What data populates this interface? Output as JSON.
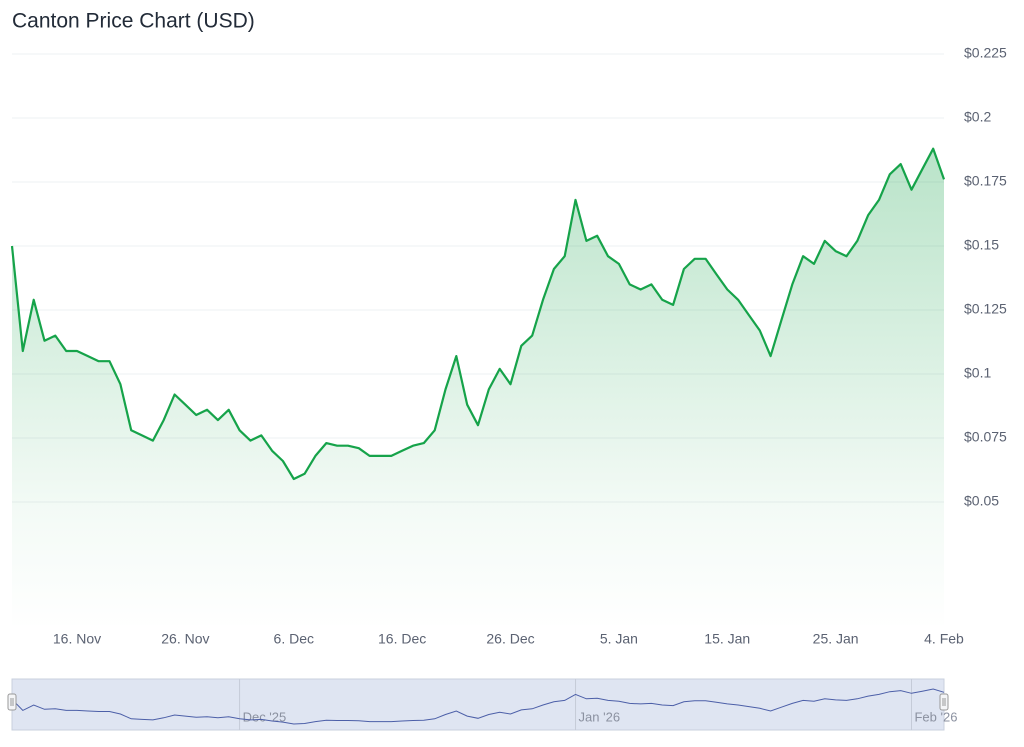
{
  "chart_data": {
    "type": "line",
    "title": "Canton Price Chart (USD)",
    "color": "#16a34a",
    "categories": [
      "10. Nov",
      "11. Nov",
      "12. Nov",
      "13. Nov",
      "14. Nov",
      "15. Nov",
      "16. Nov",
      "17. Nov",
      "18. Nov",
      "19. Nov",
      "20. Nov",
      "21. Nov",
      "22. Nov",
      "23. Nov",
      "24. Nov",
      "25. Nov",
      "26. Nov",
      "27. Nov",
      "28. Nov",
      "29. Nov",
      "30. Nov",
      "1. Dec",
      "2. Dec",
      "3. Dec",
      "4. Dec",
      "5. Dec",
      "6. Dec",
      "7. Dec",
      "8. Dec",
      "9. Dec",
      "10. Dec",
      "11. Dec",
      "12. Dec",
      "13. Dec",
      "14. Dec",
      "15. Dec",
      "16. Dec",
      "17. Dec",
      "18. Dec",
      "19. Dec",
      "20. Dec",
      "21. Dec",
      "22. Dec",
      "23. Dec",
      "24. Dec",
      "25. Dec",
      "26. Dec",
      "27. Dec",
      "28. Dec",
      "29. Dec",
      "30. Dec",
      "31. Dec",
      "1. Jan",
      "2. Jan",
      "3. Jan",
      "4. Jan",
      "5. Jan",
      "6. Jan",
      "7. Jan",
      "8. Jan",
      "9. Jan",
      "10. Jan",
      "11. Jan",
      "12. Jan",
      "13. Jan",
      "14. Jan",
      "15. Jan",
      "16. Jan",
      "17. Jan",
      "18. Jan",
      "19. Jan",
      "20. Jan",
      "21. Jan",
      "22. Jan",
      "23. Jan",
      "24. Jan",
      "25. Jan",
      "26. Jan",
      "27. Jan",
      "28. Jan",
      "29. Jan",
      "30. Jan",
      "31. Jan",
      "1. Feb",
      "2. Feb",
      "3. Feb",
      "4. Feb"
    ],
    "values": [
      0.15,
      0.109,
      0.129,
      0.113,
      0.115,
      0.109,
      0.109,
      0.107,
      0.105,
      0.105,
      0.096,
      0.078,
      0.076,
      0.074,
      0.082,
      0.092,
      0.088,
      0.084,
      0.086,
      0.082,
      0.086,
      0.078,
      0.074,
      0.076,
      0.07,
      0.066,
      0.059,
      0.061,
      0.068,
      0.073,
      0.072,
      0.072,
      0.071,
      0.068,
      0.068,
      0.068,
      0.07,
      0.072,
      0.073,
      0.078,
      0.094,
      0.107,
      0.088,
      0.08,
      0.094,
      0.102,
      0.096,
      0.111,
      0.115,
      0.129,
      0.141,
      0.146,
      0.168,
      0.152,
      0.154,
      0.146,
      0.143,
      0.135,
      0.133,
      0.135,
      0.129,
      0.127,
      0.141,
      0.145,
      0.145,
      0.139,
      0.133,
      0.129,
      0.123,
      0.117,
      0.107,
      0.121,
      0.135,
      0.146,
      0.143,
      0.152,
      0.148,
      0.146,
      0.152,
      0.162,
      0.168,
      0.178,
      0.182,
      0.172,
      0.18,
      0.188,
      0.176
    ],
    "xticks": [
      "16. Nov",
      "26. Nov",
      "6. Dec",
      "16. Dec",
      "26. Dec",
      "5. Jan",
      "15. Jan",
      "25. Jan",
      "4. Feb"
    ],
    "ylim": [
      0,
      0.225
    ],
    "yticks": [
      {
        "value": 0.05,
        "label": "$0.05"
      },
      {
        "value": 0.075,
        "label": "$0.075"
      },
      {
        "value": 0.1,
        "label": "$0.1"
      },
      {
        "value": 0.125,
        "label": "$0.125"
      },
      {
        "value": 0.15,
        "label": "$0.15"
      },
      {
        "value": 0.175,
        "label": "$0.175"
      },
      {
        "value": 0.2,
        "label": "$0.2"
      },
      {
        "value": 0.225,
        "label": "$0.225"
      }
    ],
    "grid": true,
    "navigator_labels": [
      "Dec '25",
      "Jan '26",
      "Feb '26"
    ]
  }
}
